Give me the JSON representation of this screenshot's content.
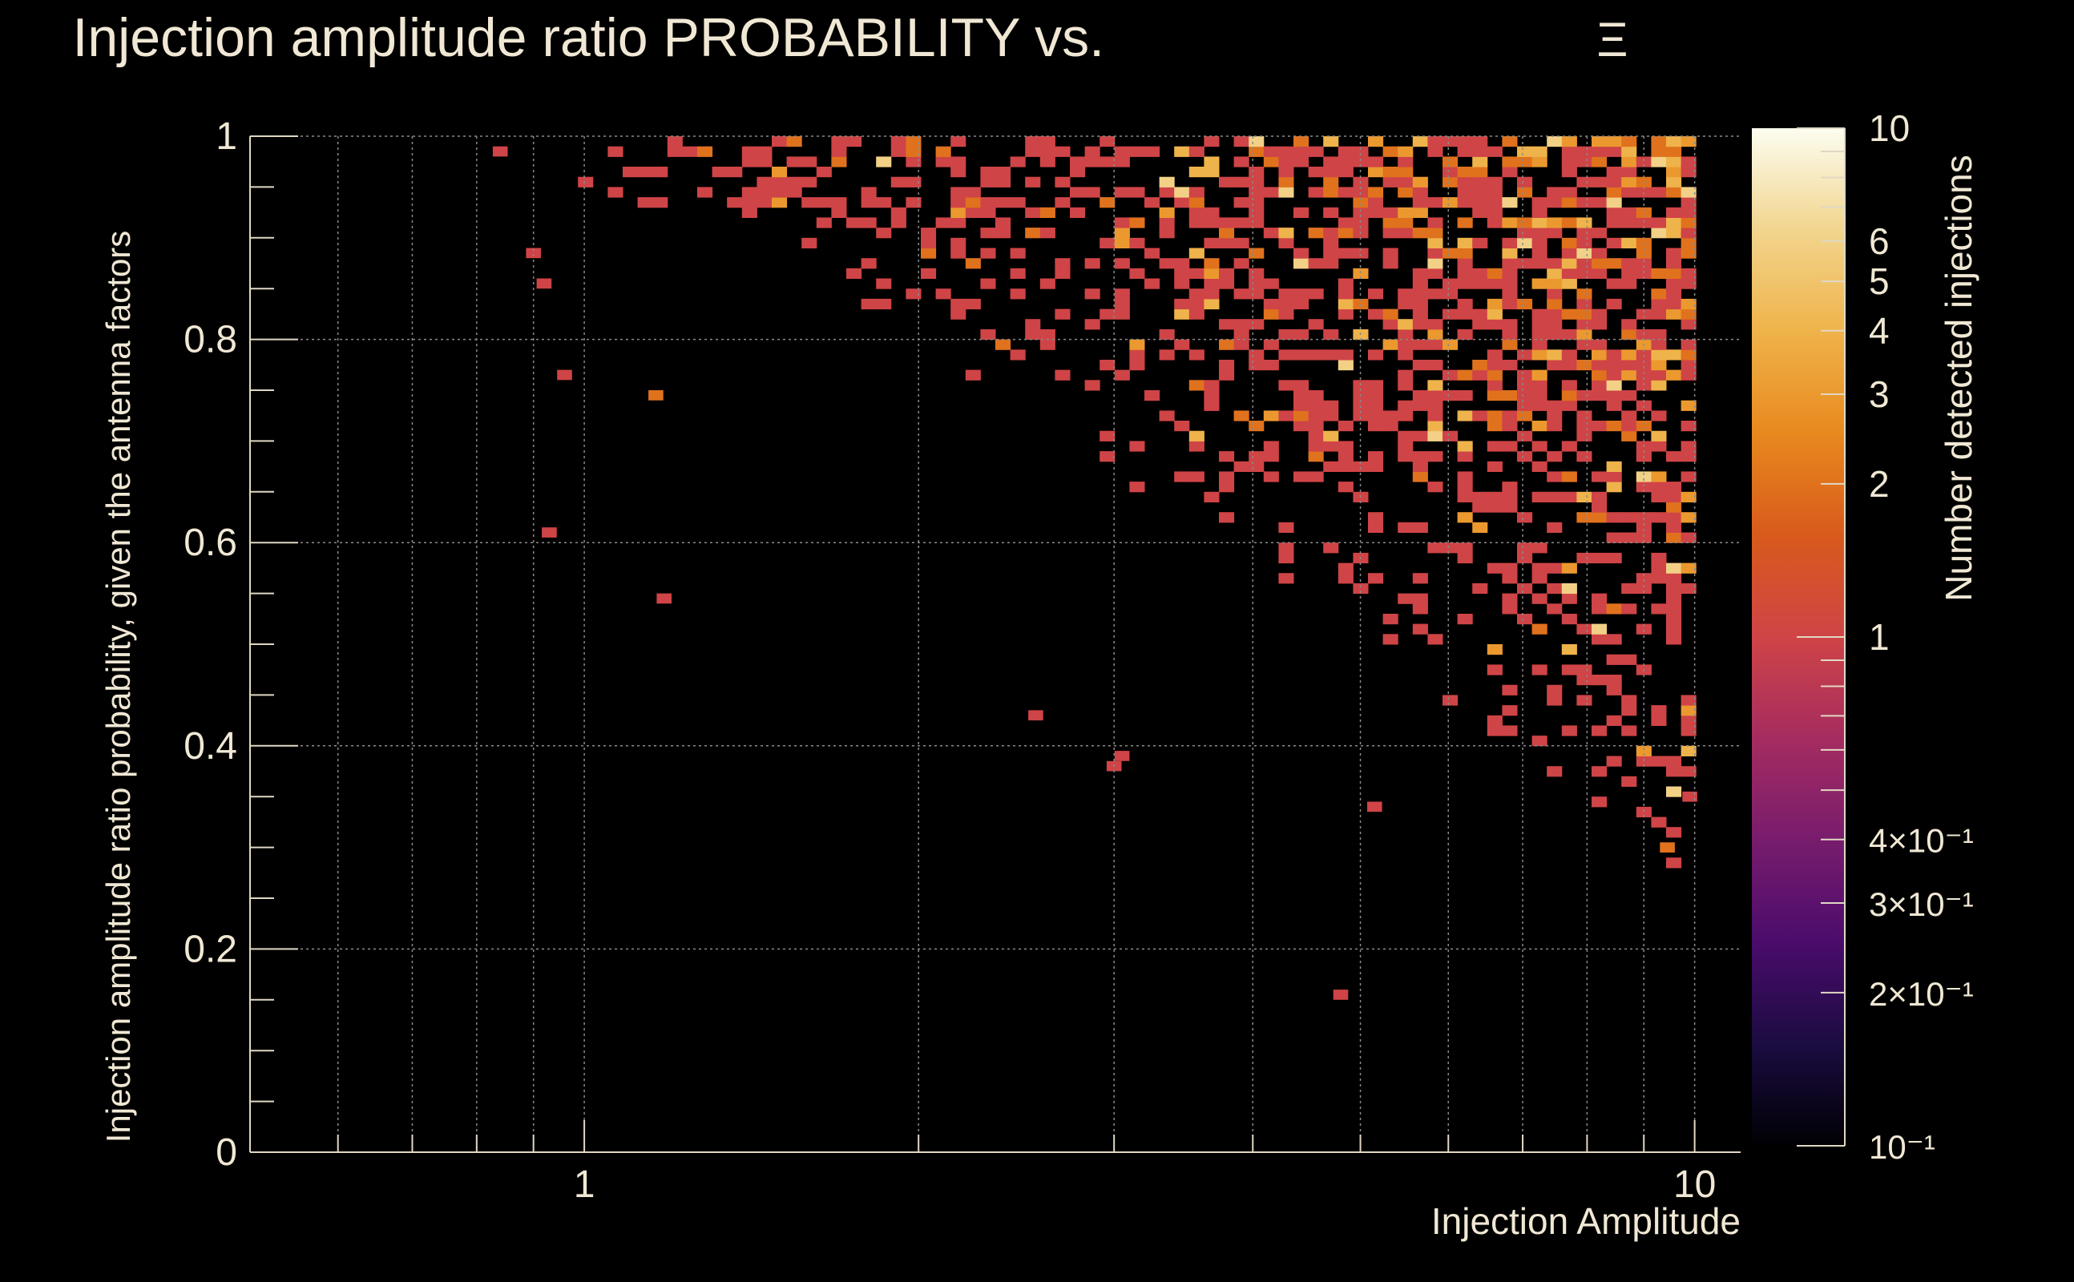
{
  "chart_data": {
    "type": "heatmap",
    "title": "Injection amplitude ratio PROBABILITY vs.",
    "title_symbol": "Ξ",
    "xlabel": "Injection Amplitude",
    "ylabel": "Injection amplitude ratio probability, given the antenna factors",
    "zlabel": "Number detected injections",
    "x_scale": "log",
    "x_range": [
      0.5,
      11
    ],
    "y_range": [
      0,
      1
    ],
    "z_scale": "log",
    "z_range": [
      0.1,
      10
    ],
    "grid": true,
    "x_tick_labels": [
      {
        "value": 1,
        "label": "1"
      },
      {
        "value": 10,
        "label": "10"
      }
    ],
    "y_tick_labels": [
      {
        "value": 0,
        "label": "0"
      },
      {
        "value": 0.2,
        "label": "0.2"
      },
      {
        "value": 0.4,
        "label": "0.4"
      },
      {
        "value": 0.6,
        "label": "0.6"
      },
      {
        "value": 0.8,
        "label": "0.8"
      },
      {
        "value": 1,
        "label": "1"
      }
    ],
    "z_tick_labels": [
      {
        "value": 10,
        "label": "10"
      },
      {
        "value": 6,
        "label": "6"
      },
      {
        "value": 5,
        "label": "5"
      },
      {
        "value": 4,
        "label": "4"
      },
      {
        "value": 3,
        "label": "3"
      },
      {
        "value": 2,
        "label": "2"
      },
      {
        "value": 1,
        "label": "1"
      },
      {
        "value": 0.4,
        "label": "4×10⁻¹"
      },
      {
        "value": 0.3,
        "label": "3×10⁻¹"
      },
      {
        "value": 0.2,
        "label": "2×10⁻¹"
      },
      {
        "value": 0.1,
        "label": "10⁻¹"
      }
    ],
    "colormap": [
      "#000004",
      "#1b0c41",
      "#4a0c6b",
      "#781c6d",
      "#a52c60",
      "#cf4446",
      "#d85a1c",
      "#e8891e",
      "#efb34a",
      "#f2d58e",
      "#fcfdf0"
    ],
    "bins": {
      "x_bins": 100,
      "y_bins": 100,
      "notable_points": [
        {
          "x": 0.84,
          "y": 0.985,
          "z": 1
        },
        {
          "x": 0.9,
          "y": 0.885,
          "z": 1
        },
        {
          "x": 0.92,
          "y": 0.855,
          "z": 1
        },
        {
          "x": 0.96,
          "y": 0.765,
          "z": 1
        },
        {
          "x": 0.93,
          "y": 0.61,
          "z": 1
        },
        {
          "x": 1.16,
          "y": 0.745,
          "z": 2
        },
        {
          "x": 1.18,
          "y": 0.545,
          "z": 1
        },
        {
          "x": 2.55,
          "y": 0.43,
          "z": 1
        },
        {
          "x": 3.0,
          "y": 0.38,
          "z": 1
        },
        {
          "x": 3.05,
          "y": 0.39,
          "z": 1
        },
        {
          "x": 4.8,
          "y": 0.155,
          "z": 1
        },
        {
          "x": 5.15,
          "y": 0.34,
          "z": 1
        },
        {
          "x": 9.45,
          "y": 0.3,
          "z": 2
        },
        {
          "x": 9.9,
          "y": 0.35,
          "z": 1
        }
      ]
    }
  }
}
